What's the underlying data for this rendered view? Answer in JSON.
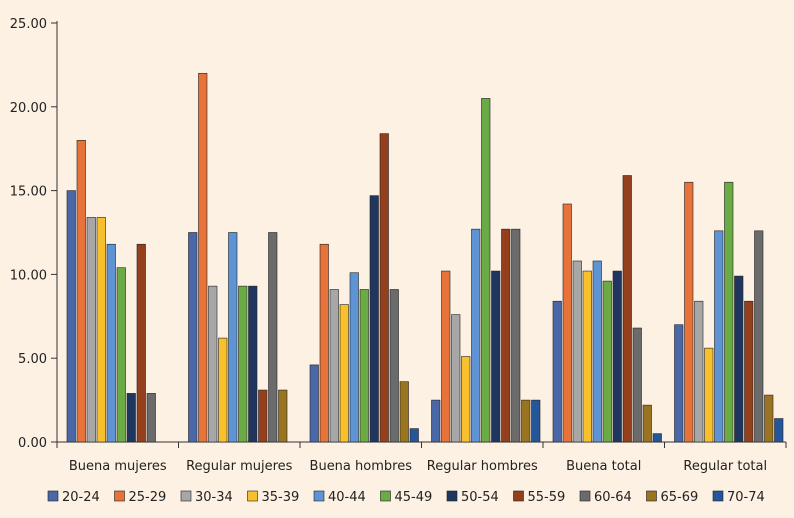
{
  "chart_data": {
    "type": "bar",
    "title": "",
    "xlabel": "",
    "ylabel": "",
    "ylim": [
      0,
      25
    ],
    "yticks": [
      "0.00",
      "5.00",
      "10.00",
      "15.00",
      "20.00",
      "25.00"
    ],
    "grid": false,
    "legend_position": "bottom",
    "categories": [
      "Buena mujeres",
      "Regular mujeres",
      "Buena hombres",
      "Regular hombres",
      "Buena total",
      "Regular total"
    ],
    "series": [
      {
        "name": "20-24",
        "color": "#4a68a8",
        "values": [
          15.0,
          12.5,
          4.6,
          2.5,
          8.4,
          7.0
        ]
      },
      {
        "name": "25-29",
        "color": "#e8733a",
        "values": [
          18.0,
          22.0,
          11.8,
          10.2,
          14.2,
          15.5
        ]
      },
      {
        "name": "30-34",
        "color": "#a7a7a7",
        "values": [
          13.4,
          9.3,
          9.1,
          7.6,
          10.8,
          8.4
        ]
      },
      {
        "name": "35-39",
        "color": "#f8c02c",
        "values": [
          13.4,
          6.2,
          8.2,
          5.1,
          10.2,
          5.6
        ]
      },
      {
        "name": "40-44",
        "color": "#5e94d4",
        "values": [
          11.8,
          12.5,
          10.1,
          12.7,
          10.8,
          12.6
        ]
      },
      {
        "name": "45-49",
        "color": "#6aab46",
        "values": [
          10.4,
          9.3,
          9.1,
          20.5,
          9.6,
          15.5
        ]
      },
      {
        "name": "50-54",
        "color": "#21365e",
        "values": [
          2.9,
          9.3,
          14.7,
          10.2,
          10.2,
          9.9
        ]
      },
      {
        "name": "55-59",
        "color": "#94401d",
        "values": [
          11.8,
          3.1,
          18.4,
          12.7,
          15.9,
          8.4
        ]
      },
      {
        "name": "60-64",
        "color": "#6b6b6b",
        "values": [
          2.9,
          12.5,
          9.1,
          12.7,
          6.8,
          12.6
        ]
      },
      {
        "name": "65-69",
        "color": "#9a7420",
        "values": [
          0,
          3.1,
          3.6,
          2.5,
          2.2,
          2.8
        ]
      },
      {
        "name": "70-74",
        "color": "#26569a",
        "values": [
          0,
          0,
          0.8,
          2.5,
          0.5,
          1.4
        ]
      }
    ]
  }
}
